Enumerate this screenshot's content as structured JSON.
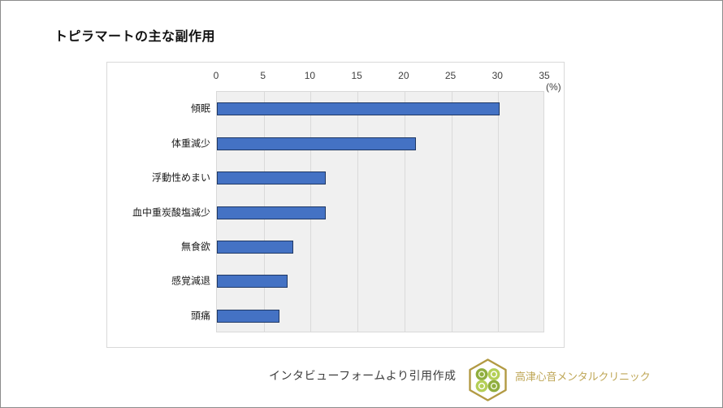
{
  "chart_data": {
    "type": "bar",
    "orientation": "horizontal",
    "title": "トピラマートの主な副作用",
    "categories": [
      "傾眠",
      "体重減少",
      "浮動性めまい",
      "血中重炭酸塩減少",
      "無食欲",
      "感覚減退",
      "頭痛"
    ],
    "values": [
      30.3,
      21.3,
      11.7,
      11.7,
      8.2,
      7.6,
      6.7
    ],
    "xlabel": "",
    "ylabel": "",
    "unit_label": "(%)",
    "xlim": [
      0,
      35
    ],
    "x_ticks": [
      "0",
      "5",
      "10",
      "15",
      "20",
      "25",
      "30",
      "35"
    ],
    "axis_position": "top",
    "grid": true,
    "legend": "none",
    "bar_color": "#4472c4",
    "bar_border_color": "#1f3864",
    "plot_bg_color": "#f0f0f0"
  },
  "footer": {
    "source_text": "インタビューフォームより引用作成",
    "clinic_name": "高津心音メンタルクリニック",
    "clinic_color": "#bfa757",
    "logo": {
      "icon_name": "clover-hexagon-logo-icon",
      "hexagon_color": "#b29a43",
      "leaf_color_dark": "#8fae3e",
      "leaf_color_light": "#b4cf57"
    }
  }
}
